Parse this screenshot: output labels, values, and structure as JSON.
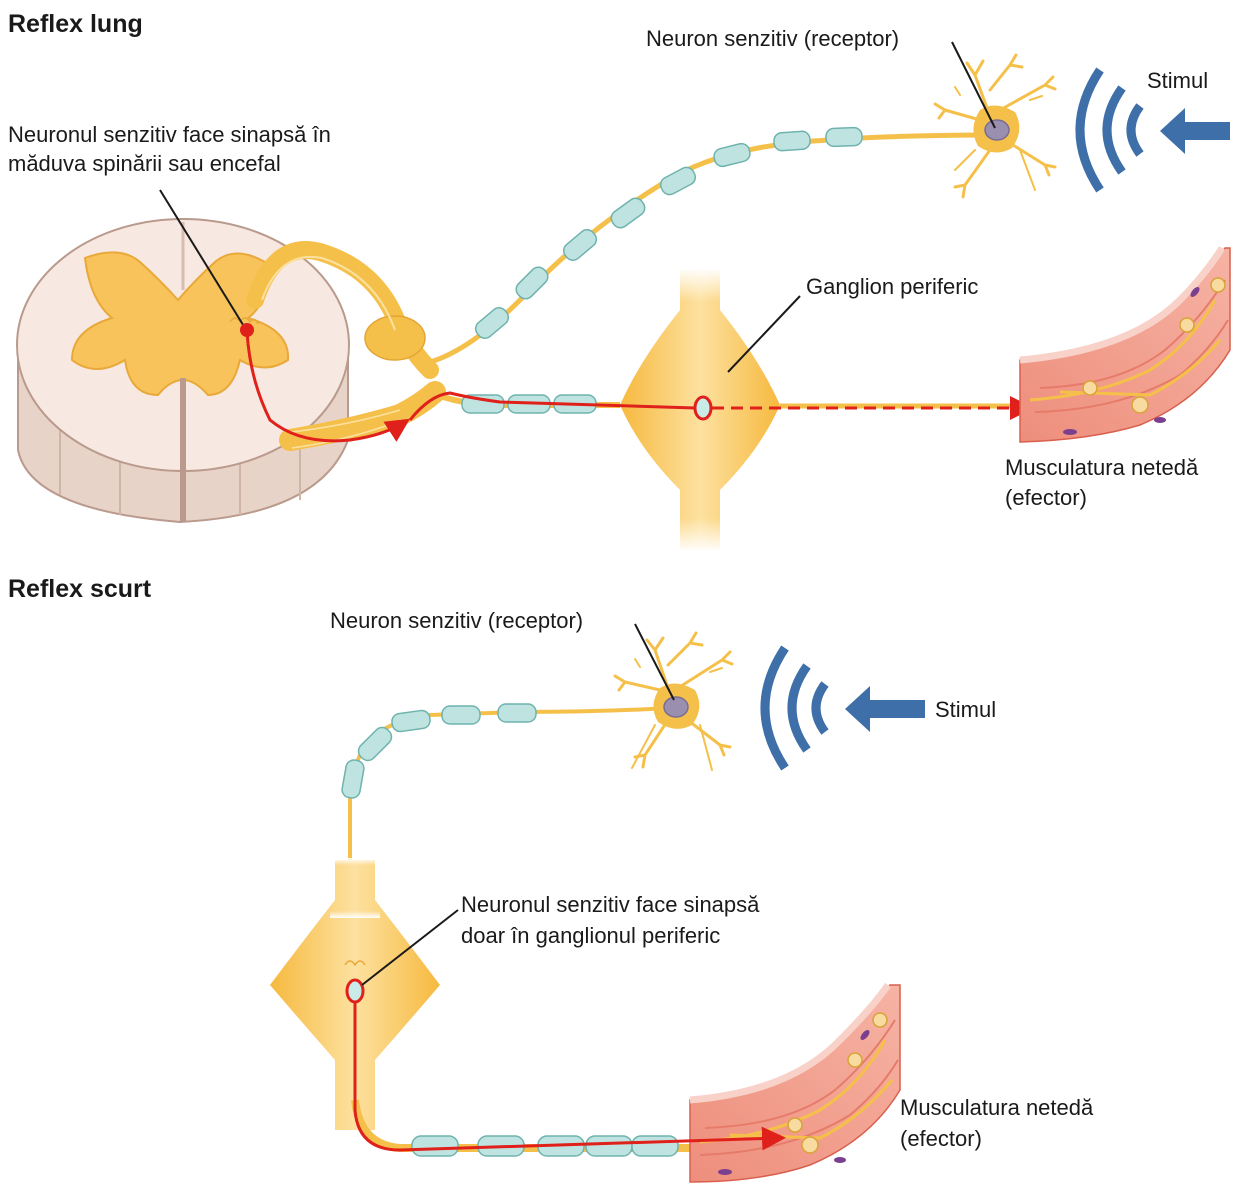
{
  "sections": {
    "long": {
      "title": "Reflex lung",
      "sensory_neuron": "Neuron senzitiv (receptor)",
      "stimulus": "Stimul",
      "synapse_line1": "Neuronul senzitiv face sinapsă în",
      "synapse_line2": "măduva spinării sau encefal",
      "ganglion": "Ganglion periferic",
      "effector_line1": "Musculatura netedă",
      "effector_line2": "(efector)"
    },
    "short": {
      "title": "Reflex scurt",
      "sensory_neuron": "Neuron senzitiv (receptor)",
      "stimulus": "Stimul",
      "synapse_line1": "Neuronul senzitiv face sinapsă",
      "synapse_line2": "doar în ganglionul periferic",
      "effector_line1": "Musculatura netedă",
      "effector_line2": "(efector)"
    }
  },
  "colors": {
    "nerve": "#f5c04a",
    "nerve_light": "#fbdc8a",
    "myelin": "#bfe3e0",
    "myelin_edge": "#6fb3ad",
    "signal": "#e0201b",
    "stimulus": "#3e6fa8",
    "spinal_outer": "#f6e6df",
    "spinal_grey": "#f8c35a",
    "muscle": "#f2a08f",
    "muscle_dark": "#d9604e"
  }
}
